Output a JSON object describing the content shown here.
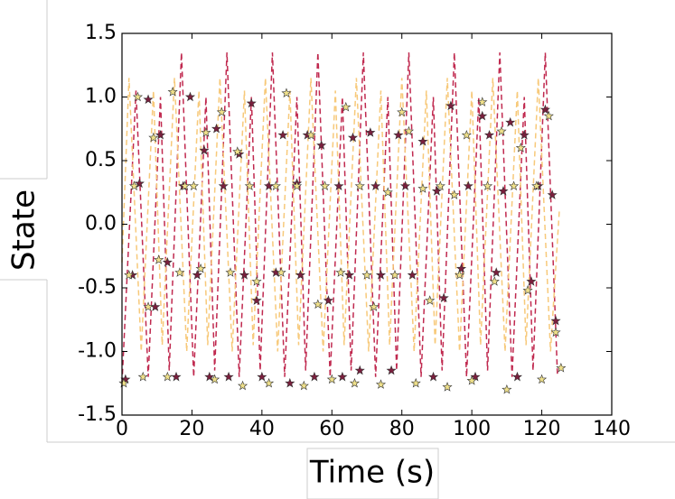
{
  "chart_data": {
    "type": "line",
    "xlabel": "Time (s)",
    "ylabel": "State",
    "xlim": [
      0,
      140
    ],
    "ylim": [
      -1.5,
      1.5
    ],
    "xticks": [
      0,
      20,
      40,
      60,
      80,
      100,
      120,
      140
    ],
    "yticks": [
      1.5,
      {
        "value": 1,
        "label": "1.0"
      },
      0.5,
      {
        "value": 0,
        "label": "0.0"
      },
      -0.5,
      {
        "value": -1,
        "label": "-1.0"
      },
      -1.5
    ],
    "series": [
      {
        "color": "#c0294f",
        "linestyle": "dashed",
        "marker": "none",
        "x": [
          0,
          4,
          7.5,
          11,
          13.5,
          17,
          20.5,
          24,
          26.5,
          30,
          33.5,
          37,
          39.5,
          43,
          46.5,
          50,
          52.5,
          56,
          59.5,
          63,
          65.5,
          69,
          72.5,
          76,
          78.5,
          82,
          85.5,
          89,
          91.5,
          95,
          98.5,
          102,
          104.5,
          108,
          111.5,
          115,
          117.5,
          121,
          124.5
        ],
        "values": [
          -1.25,
          1.05,
          -1.2,
          1.0,
          -1.15,
          1.35,
          -1.2,
          1.0,
          -1.15,
          1.35,
          -1.2,
          1.0,
          -1.15,
          1.35,
          -1.2,
          1.0,
          -1.15,
          1.35,
          -1.2,
          1.0,
          -1.15,
          1.35,
          -1.2,
          1.0,
          -1.15,
          1.35,
          -1.2,
          1.0,
          -1.15,
          1.35,
          -1.2,
          1.0,
          -1.15,
          1.35,
          -1.2,
          1.0,
          -1.15,
          1.35,
          -1.2
        ]
      },
      {
        "color": "#f7c97a",
        "linestyle": "dashed",
        "marker": "none",
        "x": [
          0,
          2,
          5.5,
          9,
          11.5,
          15,
          18.5,
          22,
          24.5,
          28,
          31.5,
          35,
          37.5,
          41,
          44.5,
          48,
          50.5,
          54,
          57.5,
          61,
          63.5,
          67,
          70.5,
          74,
          76.5,
          80,
          83.5,
          87,
          89.5,
          93,
          96.5,
          100,
          102.5,
          106,
          109.5,
          113,
          115.5,
          119,
          122.5,
          125
        ],
        "values": [
          -0.3,
          1.15,
          -1.0,
          1.05,
          -0.95,
          1.15,
          -1.0,
          1.05,
          -0.95,
          1.15,
          -1.0,
          1.05,
          -0.95,
          1.15,
          -1.0,
          1.05,
          -0.95,
          1.15,
          -1.0,
          1.05,
          -0.95,
          1.15,
          -1.0,
          1.05,
          -0.95,
          1.15,
          -1.0,
          1.05,
          -0.95,
          1.15,
          -1.0,
          1.05,
          -0.95,
          1.15,
          -1.0,
          1.05,
          -0.95,
          1.15,
          -1.0,
          0.1
        ]
      },
      {
        "color": "#7a1f3d",
        "linestyle": "none",
        "marker": "star",
        "x": [
          1,
          3,
          5,
          7.5,
          9.5,
          11,
          13,
          15.5,
          17.5,
          19.5,
          21.5,
          23.5,
          25,
          27,
          29,
          30.5,
          33.5,
          35,
          37,
          38.5,
          40,
          42,
          44,
          46,
          48,
          50,
          51,
          53,
          55,
          57,
          59,
          62,
          63,
          65,
          66,
          68,
          71,
          72.5,
          74,
          77,
          79,
          81,
          83,
          86,
          89,
          90,
          92,
          94,
          97,
          99,
          101,
          103,
          105,
          107,
          109,
          111,
          113,
          115,
          117,
          119,
          121,
          123,
          124
        ],
        "values": [
          -1.22,
          -0.4,
          0.32,
          0.98,
          -0.65,
          0.7,
          -0.3,
          -1.2,
          0.3,
          1.0,
          -0.4,
          0.58,
          -1.2,
          0.75,
          0.3,
          -1.2,
          0.55,
          -0.4,
          0.95,
          -0.6,
          -1.2,
          0.3,
          -0.38,
          0.7,
          -1.25,
          0.32,
          -0.4,
          0.7,
          -1.2,
          0.62,
          -0.6,
          0.3,
          -1.2,
          -0.4,
          0.68,
          -1.15,
          0.72,
          0.3,
          -0.4,
          -1.15,
          0.7,
          0.3,
          -0.4,
          0.65,
          -1.2,
          0.26,
          -0.58,
          0.93,
          -0.35,
          0.3,
          -1.2,
          0.85,
          0.7,
          -0.38,
          0.26,
          0.8,
          -1.2,
          0.7,
          -0.45,
          0.3,
          0.9,
          0.23,
          -0.76
        ]
      },
      {
        "color": "#efe08a",
        "linestyle": "none",
        "marker": "star",
        "x": [
          0.5,
          2,
          3.5,
          4.5,
          6,
          7.5,
          9,
          10.5,
          13,
          14.5,
          16.5,
          18,
          20.5,
          22.5,
          24,
          26.5,
          28.5,
          31,
          33,
          34.5,
          36.5,
          38.5,
          42,
          44,
          45.5,
          47,
          50,
          52,
          54,
          56,
          58,
          60,
          62.5,
          64,
          66.5,
          68,
          70,
          72,
          74,
          76,
          78,
          80,
          82,
          84,
          86,
          88,
          91,
          93,
          95,
          96.5,
          98.5,
          100,
          103,
          104.5,
          106.5,
          108.5,
          110,
          112,
          114,
          116,
          118.5,
          120,
          122,
          124,
          125.5
        ],
        "values": [
          -1.25,
          -0.4,
          0.3,
          1.0,
          -1.2,
          -0.65,
          0.68,
          -0.28,
          -1.2,
          1.04,
          -0.38,
          0.3,
          0.3,
          -0.35,
          0.72,
          -1.22,
          0.88,
          -0.38,
          0.57,
          -1.27,
          0.3,
          -0.45,
          -1.25,
          0.3,
          -0.38,
          1.03,
          0.3,
          -1.27,
          0.7,
          -0.63,
          0.3,
          -1.22,
          -0.38,
          0.92,
          -1.25,
          0.3,
          -0.4,
          -0.65,
          -1.26,
          0.25,
          -0.4,
          0.88,
          0.73,
          -1.25,
          0.28,
          -0.6,
          0.3,
          -1.28,
          0.23,
          -0.4,
          0.7,
          -1.23,
          0.96,
          0.3,
          -0.45,
          0.73,
          -1.3,
          0.3,
          0.6,
          -0.52,
          0.3,
          -1.22,
          0.85,
          -0.85,
          -1.13
        ]
      }
    ]
  }
}
